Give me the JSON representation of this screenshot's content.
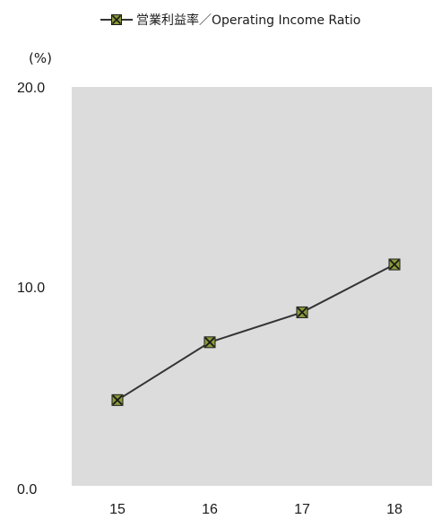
{
  "chart_data": {
    "type": "line",
    "legend": {
      "label": "営業利益率／Operating Income Ratio",
      "placement": "top"
    },
    "unit_label": "(%)",
    "categories": [
      "15",
      "16",
      "17",
      "18"
    ],
    "series": [
      {
        "name": "営業利益率／Operating Income Ratio",
        "values": [
          4.3,
          7.2,
          8.7,
          11.1
        ]
      }
    ],
    "ylim": [
      0,
      20
    ],
    "y_ticks": [
      "0.0",
      "10.0",
      "20.0"
    ],
    "y_tick_values": [
      0,
      10,
      20
    ],
    "grid": false,
    "colors": {
      "plot_background": "#dcdcdc",
      "line": "#333333",
      "marker_fill": "#8a9a3a",
      "marker_edge": "#1a1a1a"
    }
  }
}
